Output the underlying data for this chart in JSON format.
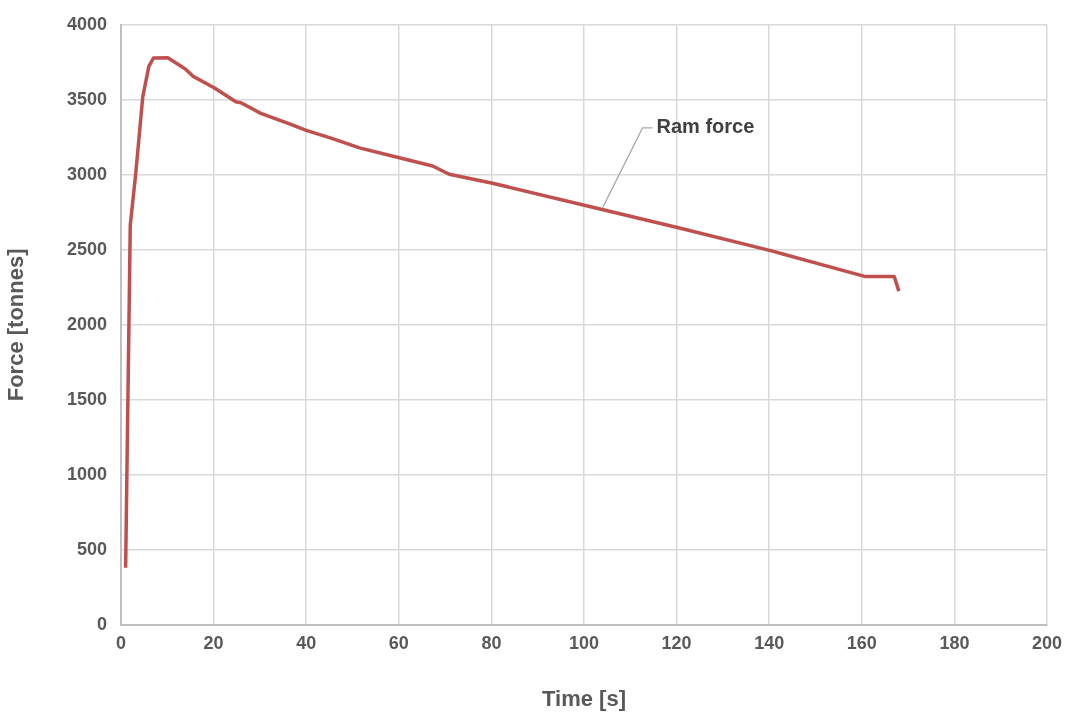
{
  "chart_data": {
    "type": "line",
    "xlabel": "Time [s]",
    "ylabel": "Force [tonnes]",
    "x": [
      1,
      2,
      3.2,
      4.7,
      6,
      7,
      10.1,
      13.9,
      15.5,
      20.2,
      24.8,
      25.9,
      30.2,
      36.4,
      40,
      45.7,
      51.5,
      60.1,
      67.3,
      70.9,
      80,
      100.3,
      120.6,
      140.5,
      160.8,
      167,
      168
    ],
    "series": [
      {
        "color": "#c0504d",
        "values": [
          382,
          2664,
          3015,
          3520,
          3721,
          3779,
          3780,
          3706,
          3658,
          3579,
          3487,
          3480,
          3410,
          3340,
          3296,
          3241,
          3180,
          3114,
          3059,
          3004,
          2946,
          2796,
          2646,
          2493,
          2322,
          2322,
          2225
        ]
      }
    ],
    "xlim": [
      0,
      200
    ],
    "xticks": [
      0,
      20,
      40,
      60,
      80,
      100,
      120,
      140,
      160,
      180,
      200
    ],
    "ylim": [
      0,
      4000
    ],
    "yticks": [
      0,
      500,
      1000,
      1500,
      2000,
      2500,
      3000,
      3500,
      4000
    ],
    "grid": true,
    "legend": false,
    "marker": "none",
    "line_style": "solid",
    "annotations": [
      {
        "text": "Ram force",
        "x": 104,
        "y": 2780
      }
    ]
  }
}
